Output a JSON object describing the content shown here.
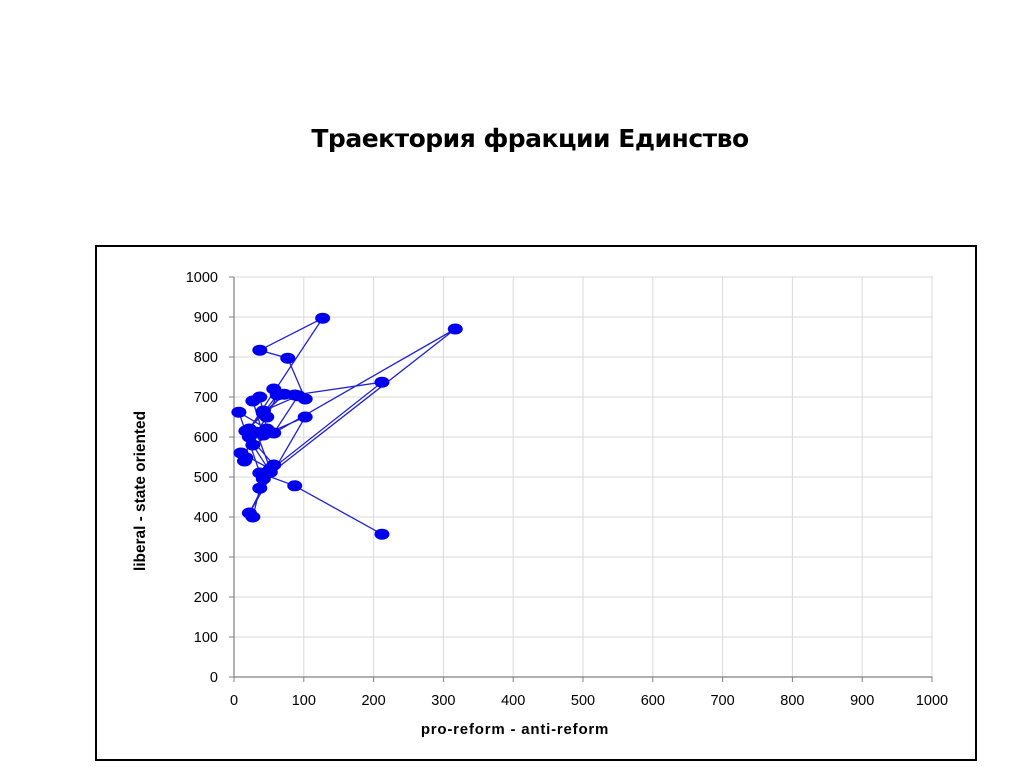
{
  "slide": {
    "title": "Траектория фракции Единство"
  },
  "chart_data": {
    "type": "scatter",
    "title": "",
    "xlabel": "pro-reform - anti-reform",
    "ylabel": "liberal - state oriented",
    "xlim": [
      0,
      1000
    ],
    "ylim": [
      0,
      1000
    ],
    "xticks": [
      0,
      100,
      200,
      300,
      400,
      500,
      600,
      700,
      800,
      900,
      1000
    ],
    "yticks": [
      0,
      100,
      200,
      300,
      400,
      500,
      600,
      700,
      800,
      900,
      1000
    ],
    "grid": true,
    "legend": "none",
    "colors": {
      "series": "#0000ee",
      "line": "#1f1fd6",
      "grid": "#d9d9d9",
      "axis": "#808080"
    },
    "series": [
      {
        "connected": true,
        "x": [
          27,
          37,
          57,
          22,
          17,
          15,
          10,
          52,
          32,
          47,
          62,
          42,
          72,
          17,
          47,
          37,
          27,
          42,
          102,
          22,
          52,
          27,
          317,
          42,
          47,
          212,
          87,
          57,
          102,
          77,
          37,
          127,
          22,
          42,
          92,
          57,
          7,
          37,
          87,
          212
        ],
        "y": [
          400,
          472,
          530,
          600,
          548,
          540,
          560,
          520,
          612,
          650,
          705,
          660,
          707,
          615,
          620,
          700,
          690,
          605,
          650,
          410,
          512,
          580,
          870,
          495,
          510,
          737,
          705,
          720,
          695,
          797,
          817,
          897,
          620,
          665,
          703,
          610,
          662,
          510,
          478,
          357
        ]
      }
    ]
  }
}
